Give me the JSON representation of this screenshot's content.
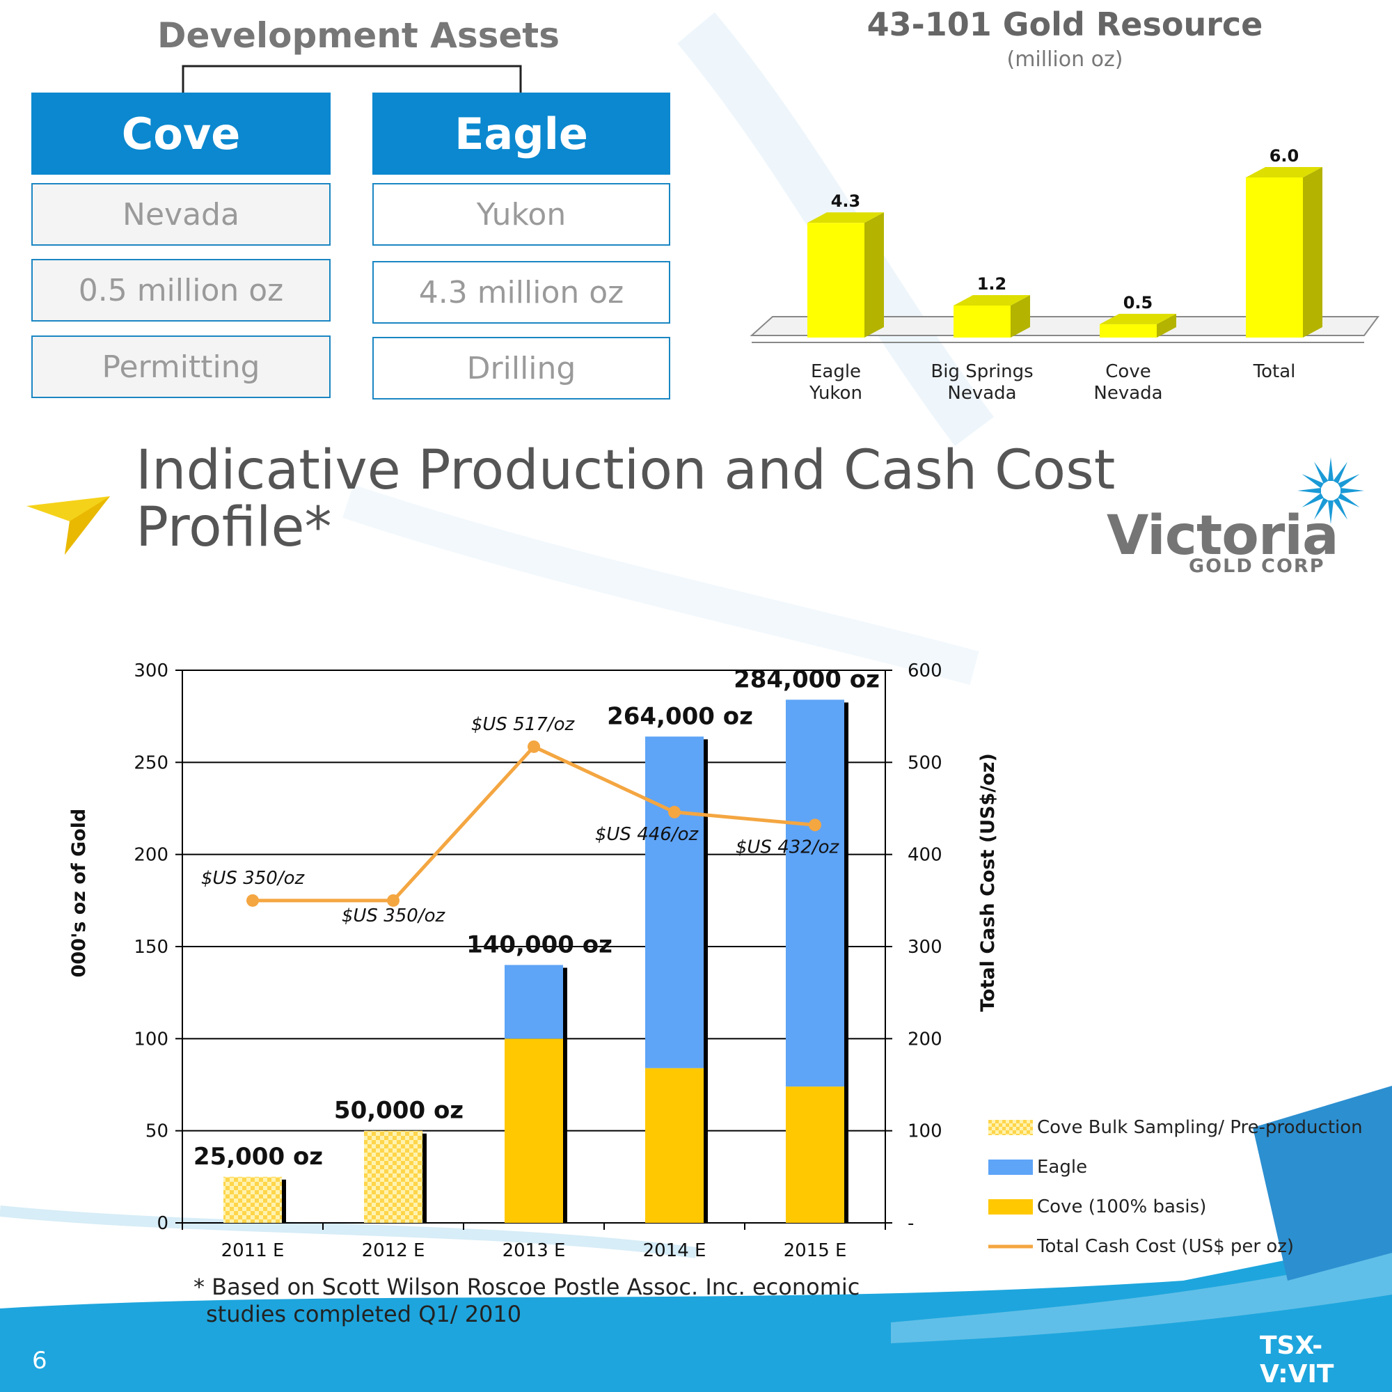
{
  "development_assets": {
    "title": "Development Assets",
    "assets": [
      {
        "name": "Cove",
        "location": "Nevada",
        "resource": "0.5 million oz",
        "stage": "Permitting"
      },
      {
        "name": "Eagle",
        "location": "Yukon",
        "resource": "4.3 million oz",
        "stage": "Drilling"
      }
    ]
  },
  "slide": {
    "title_line1": "Indicative Production and Cash Cost",
    "title_line2": "Profile*",
    "footnote_line1": "* Based on Scott Wilson Roscoe Postle Assoc. Inc. economic",
    "footnote_line2": "studies completed Q1/ 2010",
    "page_number": "6",
    "ticker": "TSX-V:VIT"
  },
  "logo": {
    "name": "Victoria",
    "subtitle": "GOLD CORP"
  },
  "colors": {
    "brand_blue": "#0b88cf",
    "bar_yellow": "#ffff00",
    "bar_yellow_side": "#b3b300",
    "cove_gold": "#ffc800",
    "eagle_blue": "#5ea4f7",
    "cost_line": "#f4a641"
  },
  "chart_data": [
    {
      "type": "bar",
      "title": "43-101 Gold Resource",
      "subtitle": "(million oz)",
      "categories": [
        [
          "Eagle",
          "Yukon"
        ],
        [
          "Big Springs",
          "Nevada"
        ],
        [
          "Cove",
          "Nevada"
        ],
        [
          "Total"
        ]
      ],
      "values": [
        4.3,
        1.2,
        0.5,
        6.0
      ],
      "value_labels": [
        "4.3",
        "1.2",
        "0.5",
        "6.0"
      ],
      "ylim": [
        0,
        6.0
      ]
    },
    {
      "type": "bar",
      "stacked": true,
      "categories": [
        "2011 E",
        "2012 E",
        "2013 E",
        "2014 E",
        "2015 E"
      ],
      "series": [
        {
          "name": "Cove Bulk Sampling/ Pre-production",
          "values": [
            25,
            50,
            0,
            0,
            0
          ]
        },
        {
          "name": "Cove (100% basis)",
          "values": [
            0,
            0,
            100,
            84,
            74
          ]
        },
        {
          "name": "Eagle",
          "values": [
            0,
            0,
            40,
            180,
            210
          ]
        }
      ],
      "total_labels": [
        "25,000 oz",
        "50,000 oz",
        "140,000 oz",
        "264,000 oz",
        "284,000 oz"
      ],
      "line_series": {
        "name": "Total Cash Cost (US$ per oz)",
        "values": [
          350,
          350,
          517,
          446,
          432
        ],
        "labels": [
          "$US 350/oz",
          "$US 350/oz",
          "$US 517/oz",
          "$US 446/oz",
          "$US 432/oz"
        ]
      },
      "ylabel": "000's oz of Gold",
      "y2label": "Total Cash Cost (US$/oz)",
      "ylim": [
        0,
        300
      ],
      "y2lim": [
        0,
        600
      ],
      "yticks": [
        "0",
        "50",
        "100",
        "150",
        "200",
        "250",
        "300"
      ],
      "y2ticks": [
        "-",
        "100",
        "200",
        "300",
        "400",
        "500",
        "600"
      ],
      "legend_order": [
        "Cove Bulk Sampling/ Pre-production",
        "Eagle",
        "Cove (100% basis)",
        "Total Cash Cost (US$ per oz)"
      ],
      "legend_position": "right",
      "grid": true
    }
  ]
}
